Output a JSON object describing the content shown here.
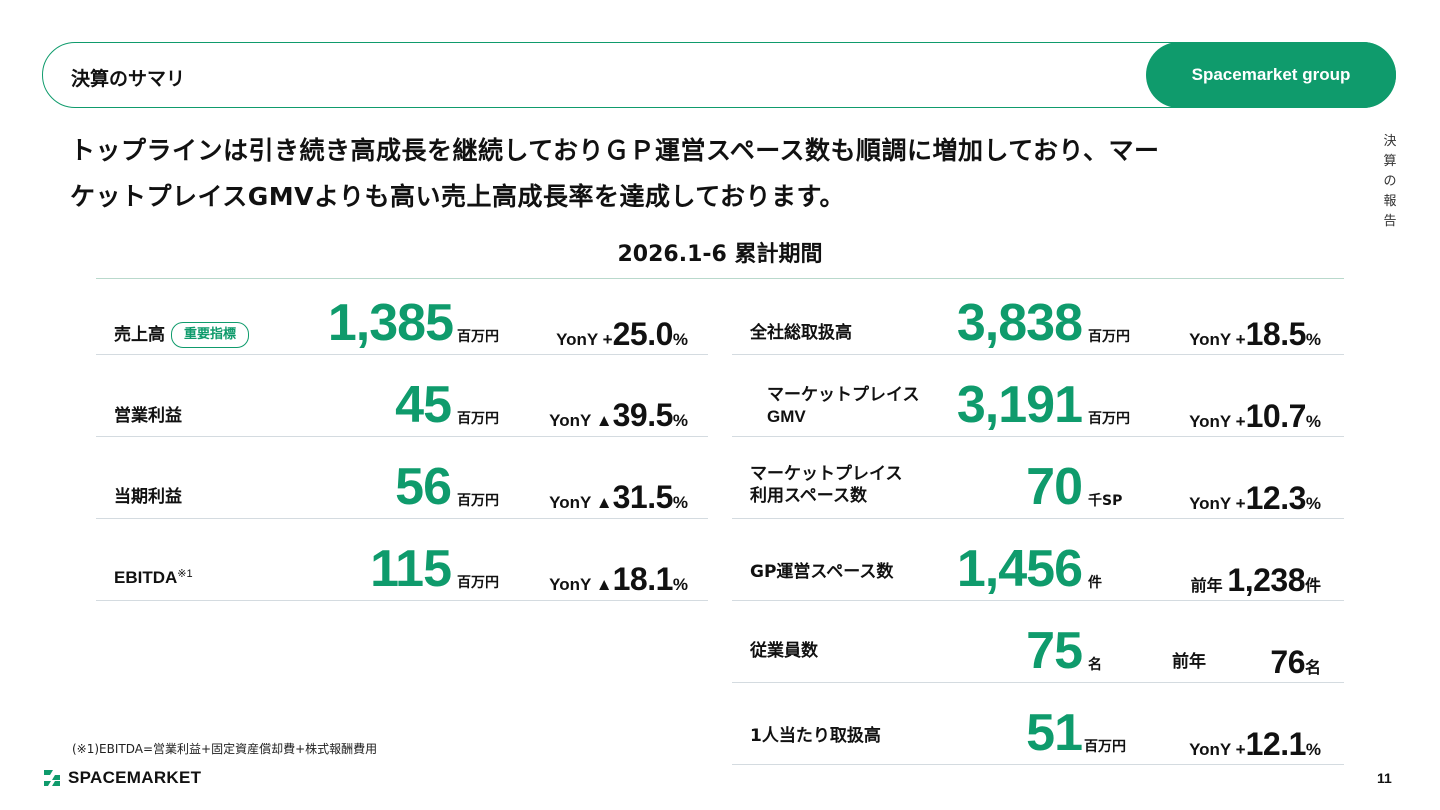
{
  "header": {
    "title": "決算のサマリ",
    "brand": "Spacemarket group"
  },
  "side_label": [
    "決",
    "算",
    "の",
    "報",
    "告"
  ],
  "headline": {
    "line1": "トップラインは引き続き高成長を継続しておりＧＰ運営スペース数も順調に増加しており、マー",
    "line2": "ケットプレイスGMVよりも高い売上高成長率を達成しております。"
  },
  "period": "2026.1-6 累計期間",
  "left_metrics": [
    {
      "label": "売上高",
      "badge": "重要指標",
      "value": "1,385",
      "unit": "百万円",
      "yoy_prefix": "YonY +",
      "yoy_value": "25.0",
      "yoy_suffix": "%"
    },
    {
      "label": "営業利益",
      "value": "45",
      "unit": "百万円",
      "yoy_prefix": "YonY ▲",
      "yoy_value": "39.5",
      "yoy_suffix": "%"
    },
    {
      "label": "当期利益",
      "value": "56",
      "unit": "百万円",
      "yoy_prefix": "YonY ▲",
      "yoy_value": "31.5",
      "yoy_suffix": "%"
    },
    {
      "label": "EBITDA",
      "label_sup": "※1",
      "value": "115",
      "unit": "百万円",
      "yoy_prefix": "YonY ▲",
      "yoy_value": "18.1",
      "yoy_suffix": "%"
    }
  ],
  "right_metrics": [
    {
      "label": "全社総取扱高",
      "value": "3,838",
      "unit": "百万円",
      "yoy_prefix": "YonY +",
      "yoy_value": "18.5",
      "yoy_suffix": "%"
    },
    {
      "label_line1": "マーケットプレイス",
      "label_line2": "GMV",
      "value": "3,191",
      "unit": "百万円",
      "yoy_prefix": "YonY +",
      "yoy_value": "10.7",
      "yoy_suffix": "%"
    },
    {
      "label_line1": "マーケットプレイス",
      "label_line2": "利用スペース数",
      "value": "70",
      "unit": "千SP",
      "yoy_prefix": "YonY +",
      "yoy_value": "12.3",
      "yoy_suffix": "%"
    },
    {
      "label": "GP運営スペース数",
      "value": "1,456",
      "unit": "件",
      "yoy_prefix": "前年",
      "yoy_value": "1,238",
      "yoy_suffix": "件"
    },
    {
      "label": "従業員数",
      "value": "75",
      "unit": "名",
      "yoy_prefix": "前年",
      "yoy_value": "76",
      "yoy_suffix": "名"
    },
    {
      "label": "1人当たり取扱高",
      "value": "51",
      "unit": "百万円",
      "yoy_prefix": "YonY +",
      "yoy_value": "12.1",
      "yoy_suffix": "%"
    }
  ],
  "footnote": "(※1)EBITDA=営業利益+固定資産償却費+株式報酬費用",
  "logo_text": "SPACEMARKET",
  "page_number": "11",
  "colors": {
    "accent": "#0f9b6c"
  }
}
